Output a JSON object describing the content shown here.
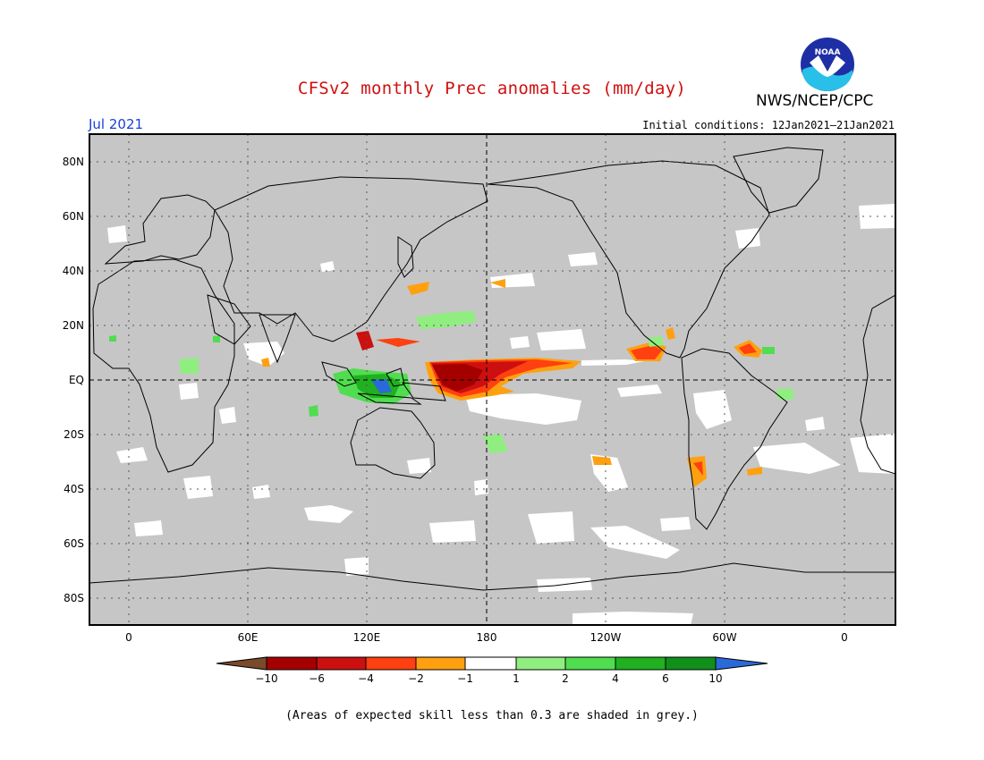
{
  "header": {
    "title": "CFSv2 monthly Prec anomalies (mm/day)",
    "agency": "NWS/NCEP/CPC",
    "logo_text": "NOAA",
    "valid_month": "Jul 2021",
    "initial_conditions": "Initial conditions: 12Jan2021–21Jan2021"
  },
  "map": {
    "lat_labels": [
      "80N",
      "60N",
      "40N",
      "20N",
      "EQ",
      "20S",
      "40S",
      "60S",
      "80S"
    ],
    "lon_labels": [
      "0",
      "60E",
      "120E",
      "180",
      "120W",
      "60W",
      "0"
    ],
    "background_color": "#c6c6c6"
  },
  "legend": {
    "ticks": [
      "−10",
      "−6",
      "−4",
      "−2",
      "−1",
      "1",
      "2",
      "4",
      "6",
      "10"
    ],
    "colors": [
      "#7a4a2a",
      "#a50000",
      "#cc1010",
      "#ff4010",
      "#ffa010",
      "#ffffff",
      "#90ee80",
      "#50dd50",
      "#20b020",
      "#10901a",
      "#2a6ad8"
    ]
  },
  "footnote": "(Areas of expected skill less than 0.3 are shaded in grey.)"
}
